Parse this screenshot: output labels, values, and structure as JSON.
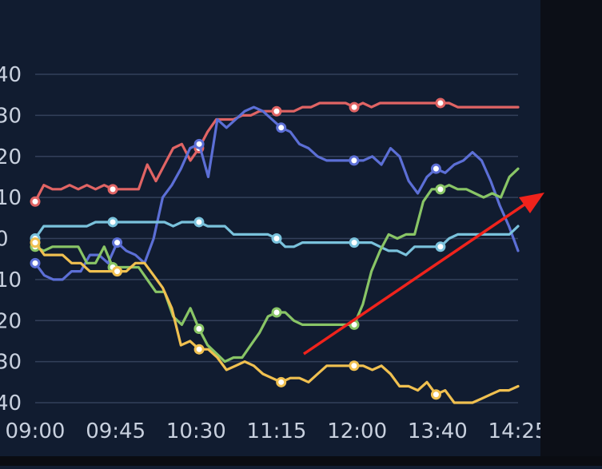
{
  "chart_data": {
    "type": "line",
    "title": "",
    "xlabel": "",
    "ylabel": "",
    "ylim": [
      -40,
      40
    ],
    "grid": true,
    "x_tick_labels": [
      "09:00",
      "09:45",
      "10:30",
      "11:15",
      "12:00",
      "13:40",
      "14:25"
    ],
    "y_tick_labels": [
      "40",
      "30",
      "20",
      "10",
      "0",
      "10",
      "20",
      "30",
      "40"
    ],
    "y_tick_values": [
      40,
      30,
      20,
      10,
      0,
      -10,
      -20,
      -30,
      -40
    ],
    "series": [
      {
        "color": "#e06464",
        "values": [
          9,
          13,
          12,
          12,
          13,
          12,
          13,
          12,
          13,
          12,
          12,
          12,
          12,
          18,
          14,
          18,
          22,
          23,
          19,
          22,
          26,
          29,
          29,
          29,
          30,
          30,
          31,
          31,
          31,
          31,
          31,
          32,
          32,
          33,
          33,
          33,
          33,
          32,
          33,
          32,
          33,
          33,
          33,
          33,
          33,
          33,
          33,
          33,
          33,
          32,
          32,
          32,
          32,
          32,
          32,
          32,
          32
        ]
      },
      {
        "color": "#5c6fd6",
        "values": [
          -6,
          -9,
          -10,
          -10,
          -8,
          -8,
          -4,
          -4,
          -6,
          -1,
          -3,
          -4,
          -6,
          0,
          10,
          13,
          17,
          22,
          23,
          15,
          29,
          27,
          29,
          31,
          32,
          31,
          29,
          27,
          26,
          23,
          22,
          20,
          19,
          19,
          19,
          19,
          19,
          20,
          18,
          22,
          20,
          14,
          11,
          15,
          17,
          16,
          18,
          19,
          21,
          19,
          14,
          8,
          3,
          -3
        ]
      },
      {
        "color": "#7ac2dc",
        "values": [
          0,
          3,
          3,
          3,
          3,
          3,
          3,
          4,
          4,
          4,
          4,
          4,
          4,
          4,
          4,
          4,
          3,
          4,
          4,
          4,
          3,
          3,
          3,
          1,
          1,
          1,
          1,
          1,
          0,
          -2,
          -2,
          -1,
          -1,
          -1,
          -1,
          -1,
          -1,
          -1,
          -1,
          -1,
          -2,
          -3,
          -3,
          -4,
          -2,
          -2,
          -2,
          -2,
          0,
          1,
          1,
          1,
          1,
          1,
          1,
          1,
          3
        ]
      },
      {
        "color": "#89c566",
        "values": [
          -2,
          -3,
          -2,
          -2,
          -2,
          -2,
          -6,
          -6,
          -2,
          -7,
          -7,
          -7,
          -7,
          -10,
          -13,
          -13,
          -19,
          -21,
          -17,
          -22,
          -26,
          -28,
          -30,
          -29,
          -29,
          -26,
          -23,
          -19,
          -18,
          -18,
          -20,
          -21,
          -21,
          -21,
          -21,
          -21,
          -21,
          -21,
          -16,
          -8,
          -3,
          1,
          0,
          1,
          1,
          9,
          12,
          12,
          13,
          12,
          12,
          11,
          10,
          11,
          10,
          15,
          17
        ]
      },
      {
        "color": "#f0c050",
        "values": [
          -1,
          -4,
          -4,
          -4,
          -6,
          -6,
          -8,
          -8,
          -8,
          -8,
          -8,
          -6,
          -6,
          -9,
          -12,
          -17,
          -26,
          -25,
          -27,
          -27,
          -29,
          -32,
          -31,
          -30,
          -31,
          -33,
          -34,
          -35,
          -34,
          -34,
          -35,
          -33,
          -31,
          -31,
          -31,
          -31,
          -31,
          -32,
          -31,
          -33,
          -36,
          -36,
          -37,
          -35,
          -38,
          -37,
          -40,
          -40,
          -40,
          -39,
          -38,
          -37,
          -37,
          -36
        ]
      }
    ]
  }
}
